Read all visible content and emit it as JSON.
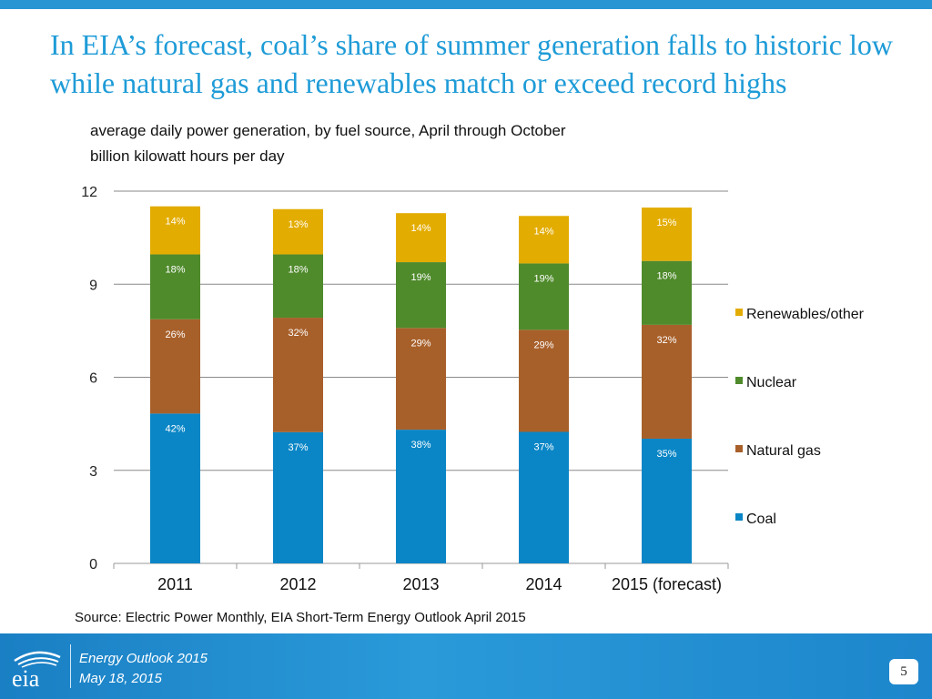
{
  "slide": {
    "title": "In EIA’s forecast, coal’s share of summer generation falls to historic low while natural gas and renewables match or exceed record highs",
    "subtitle_line1": "average daily power generation, by fuel source, April through October",
    "subtitle_line2": "billion kilowatt hours per day",
    "source": "Source: Electric Power Monthly, EIA Short-Term Energy Outlook April 2015"
  },
  "footer": {
    "logo_text": "eia",
    "line1": "Energy  Outlook 2015",
    "line2": "May 18, 2015",
    "page_number": "5"
  },
  "colors": {
    "coal": "#0a86c6",
    "natural_gas": "#a8602a",
    "nuclear": "#4f8a2b",
    "renewables": "#e3ac00",
    "grid": "#888888",
    "title": "#1e9bd7"
  },
  "chart_data": {
    "type": "bar",
    "stacked": true,
    "categories": [
      "2011",
      "2012",
      "2013",
      "2014",
      "2015 (forecast)"
    ],
    "ylim": [
      0,
      12
    ],
    "yticks": [
      0,
      3,
      6,
      9,
      12
    ],
    "ylabel": "billion kilowatt hours per day",
    "legend_position": "right",
    "series": [
      {
        "name": "Coal",
        "color": "#0a86c6",
        "values": [
          4.83,
          4.23,
          4.31,
          4.24,
          4.02
        ],
        "labels": [
          "42%",
          "37%",
          "38%",
          "37%",
          "35%"
        ]
      },
      {
        "name": "Natural gas",
        "color": "#a8602a",
        "values": [
          3.04,
          3.69,
          3.28,
          3.29,
          3.67
        ],
        "labels": [
          "26%",
          "32%",
          "29%",
          "29%",
          "32%"
        ]
      },
      {
        "name": "Nuclear",
        "color": "#4f8a2b",
        "values": [
          2.09,
          2.04,
          2.12,
          2.14,
          2.06
        ],
        "labels": [
          "18%",
          "18%",
          "19%",
          "19%",
          "18%"
        ]
      },
      {
        "name": "Renewables/other",
        "color": "#e3ac00",
        "values": [
          1.55,
          1.46,
          1.58,
          1.53,
          1.72
        ],
        "labels": [
          "14%",
          "13%",
          "14%",
          "14%",
          "15%"
        ]
      }
    ]
  }
}
